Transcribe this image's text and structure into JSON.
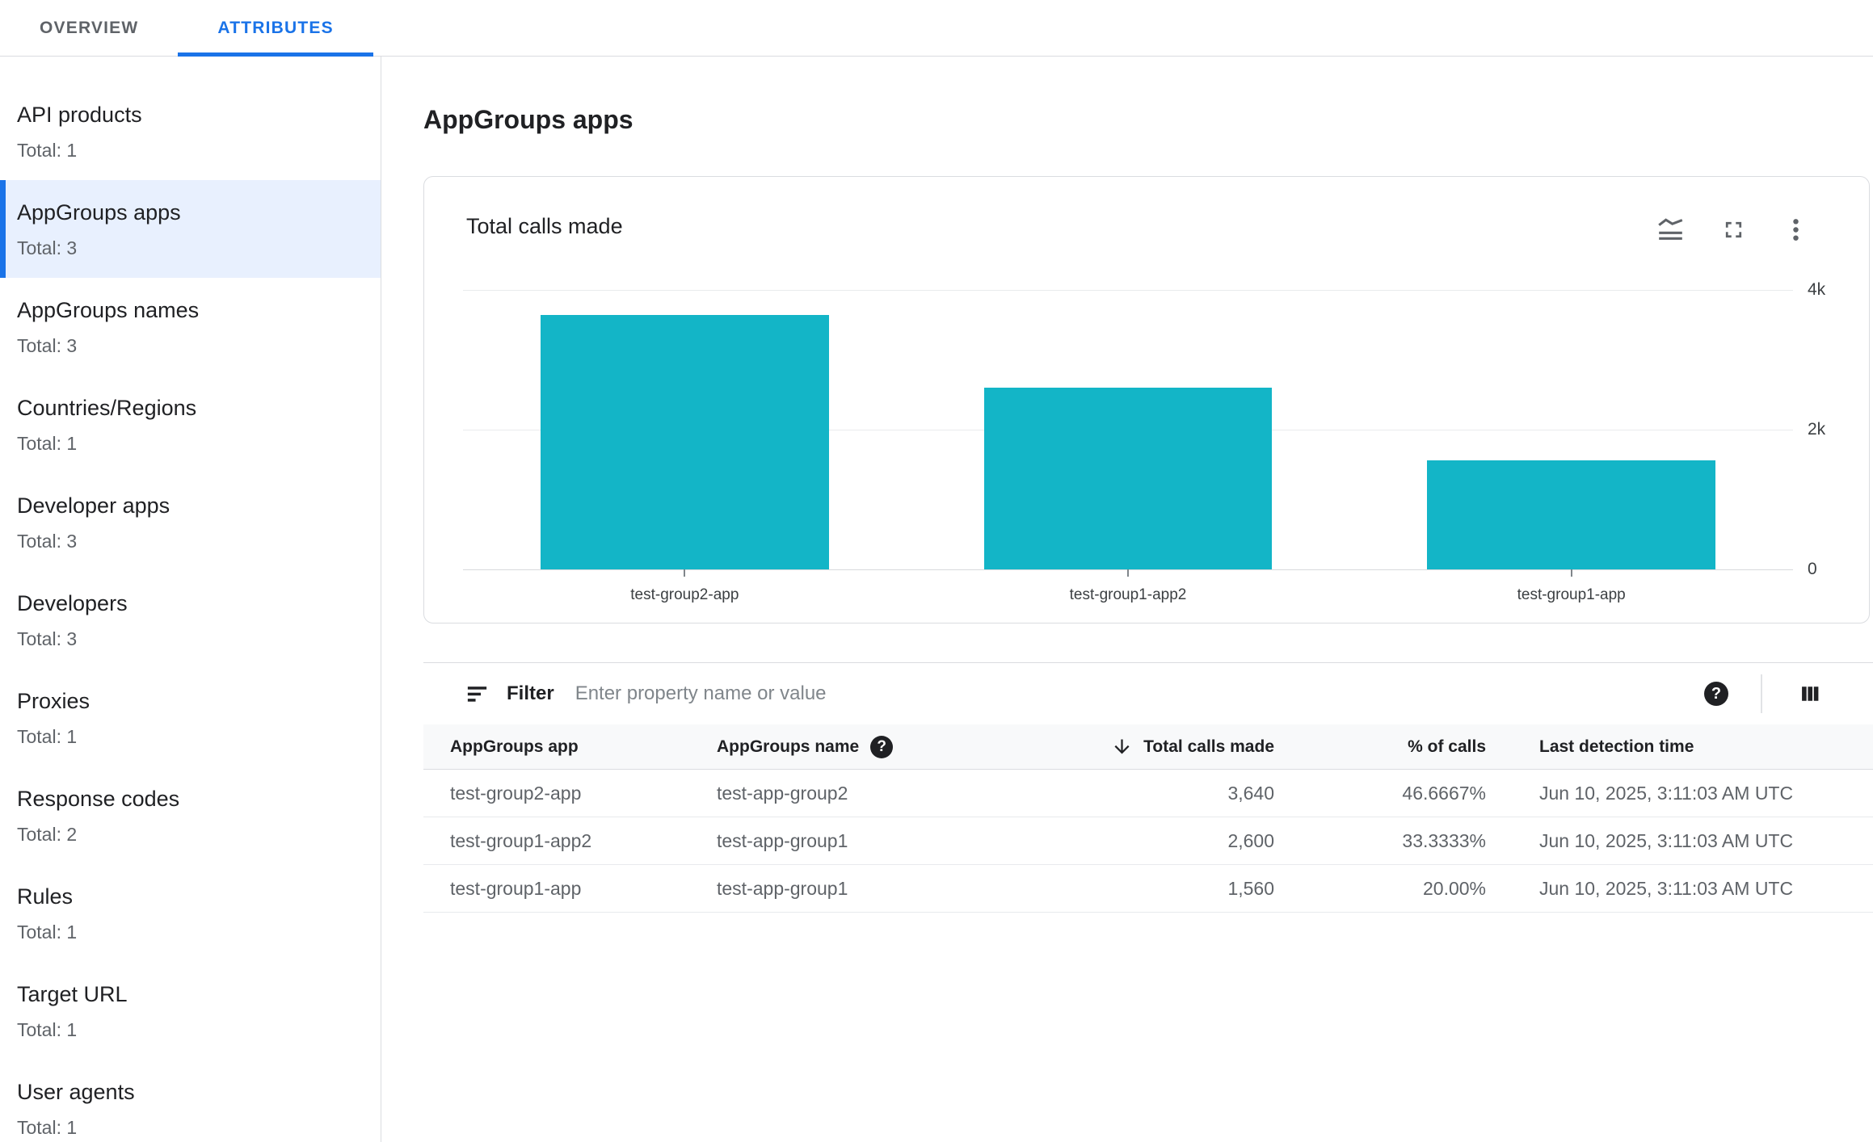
{
  "header": {
    "tabs": [
      {
        "label": "OVERVIEW",
        "active": false
      },
      {
        "label": "ATTRIBUTES",
        "active": true
      }
    ]
  },
  "sidebar": {
    "items": [
      {
        "label": "API products",
        "total": "Total: 1",
        "selected": false
      },
      {
        "label": "AppGroups apps",
        "total": "Total: 3",
        "selected": true
      },
      {
        "label": "AppGroups names",
        "total": "Total: 3",
        "selected": false
      },
      {
        "label": "Countries/Regions",
        "total": "Total: 1",
        "selected": false
      },
      {
        "label": "Developer apps",
        "total": "Total: 3",
        "selected": false
      },
      {
        "label": "Developers",
        "total": "Total: 3",
        "selected": false
      },
      {
        "label": "Proxies",
        "total": "Total: 1",
        "selected": false
      },
      {
        "label": "Response codes",
        "total": "Total: 2",
        "selected": false
      },
      {
        "label": "Rules",
        "total": "Total: 1",
        "selected": false
      },
      {
        "label": "Target URL",
        "total": "Total: 1",
        "selected": false
      },
      {
        "label": "User agents",
        "total": "Total: 1",
        "selected": false
      }
    ]
  },
  "main": {
    "page_title": "AppGroups apps",
    "chart_card": {
      "title": "Total calls made",
      "icons": [
        "chart-type-icon",
        "fullscreen-icon",
        "more-options-icon"
      ]
    },
    "filter_bar": {
      "label": "Filter",
      "placeholder": "Enter property name or value",
      "icons": [
        "filter-icon",
        "help-icon",
        "column-display-icon"
      ]
    },
    "table": {
      "columns": [
        "AppGroups app",
        "AppGroups name",
        "Total calls made",
        "% of calls",
        "Last detection time"
      ],
      "sorted_column": "Total calls made",
      "sort_direction": "descending",
      "rows": [
        {
          "app": "test-group2-app",
          "name": "test-app-group2",
          "calls": "3,640",
          "pct": "46.6667%",
          "time": "Jun 10, 2025, 3:11:03 AM UTC"
        },
        {
          "app": "test-group1-app2",
          "name": "test-app-group1",
          "calls": "2,600",
          "pct": "33.3333%",
          "time": "Jun 10, 2025, 3:11:03 AM UTC"
        },
        {
          "app": "test-group1-app",
          "name": "test-app-group1",
          "calls": "1,560",
          "pct": "20.00%",
          "time": "Jun 10, 2025, 3:11:03 AM UTC"
        }
      ]
    }
  },
  "chart_data": {
    "type": "bar",
    "title": "Total calls made",
    "categories": [
      "test-group2-app",
      "test-group1-app2",
      "test-group1-app"
    ],
    "values": [
      3640,
      2600,
      1560
    ],
    "ylim": [
      0,
      4000
    ],
    "ytick_labels": [
      "4k",
      "2k",
      "0"
    ],
    "grid": "horizontal",
    "legend": "none"
  },
  "colors": {
    "accent": "#1a73e8",
    "selected_bg": "#e8f0fe",
    "bar": "#13b5c7",
    "text_primary": "#202124",
    "text_secondary": "#5f6368",
    "border": "#dadce0",
    "gridline": "#e9ebed",
    "table_header_bg": "#f8f9fa"
  }
}
